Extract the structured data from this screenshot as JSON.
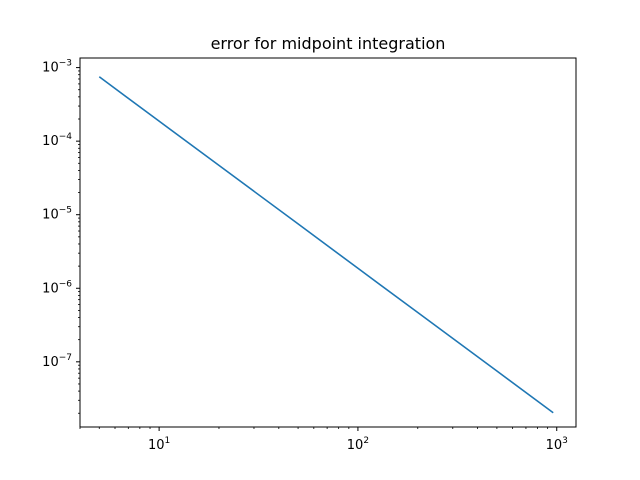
{
  "chart_data": {
    "type": "line",
    "title": "error for midpoint integration",
    "xlabel": "",
    "ylabel": "",
    "xscale": "log",
    "yscale": "log",
    "xlim": [
      4.0,
      1250
    ],
    "ylim": [
      1.3e-08,
      0.00135
    ],
    "grid": false,
    "x_major_ticks": [
      {
        "value": 10,
        "base": "10",
        "exp": "1"
      },
      {
        "value": 100,
        "base": "10",
        "exp": "2"
      },
      {
        "value": 1000,
        "base": "10",
        "exp": "3"
      }
    ],
    "y_major_ticks": [
      {
        "value": 0.001,
        "base": "10",
        "exp": "−3"
      },
      {
        "value": 0.0001,
        "base": "10",
        "exp": "−4"
      },
      {
        "value": 1e-05,
        "base": "10",
        "exp": "−5"
      },
      {
        "value": 1e-06,
        "base": "10",
        "exp": "−6"
      },
      {
        "value": 1e-07,
        "base": "10",
        "exp": "−7"
      }
    ],
    "series": [
      {
        "color": "#1f77b4",
        "x": [
          5,
          10,
          20,
          50,
          100,
          200,
          500,
          960
        ],
        "y": [
          0.00075,
          0.000187,
          4.68e-05,
          7.5e-06,
          1.87e-06,
          4.68e-07,
          7.5e-08,
          2.03e-08
        ]
      }
    ]
  }
}
